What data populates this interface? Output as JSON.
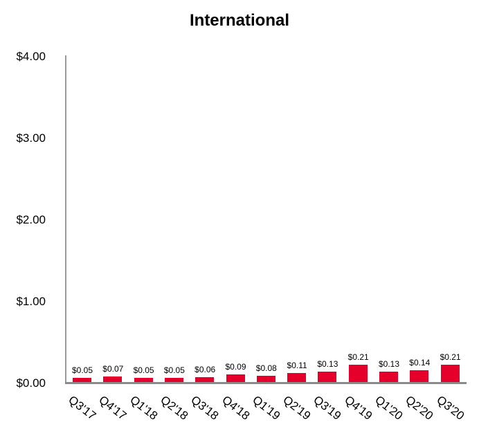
{
  "chart_data": {
    "type": "bar",
    "title": "International",
    "xlabel": "",
    "ylabel": "",
    "ylim": [
      0,
      4
    ],
    "yticks": [
      "$0.00",
      "$1.00",
      "$2.00",
      "$3.00",
      "$4.00"
    ],
    "grid": false,
    "legend": null,
    "bar_color": "#e4002b",
    "categories": [
      "Q3'17",
      "Q4'17",
      "Q1'18",
      "Q2'18",
      "Q3'18",
      "Q4'18",
      "Q1'19",
      "Q2'19",
      "Q3'19",
      "Q4'19",
      "Q1'20",
      "Q2'20",
      "Q3'20"
    ],
    "values": [
      0.05,
      0.07,
      0.05,
      0.05,
      0.06,
      0.09,
      0.08,
      0.11,
      0.13,
      0.21,
      0.13,
      0.14,
      0.21
    ],
    "labels": [
      "$0.05",
      "$0.07",
      "$0.05",
      "$0.05",
      "$0.06",
      "$0.09",
      "$0.08",
      "$0.11",
      "$0.13",
      "$0.21",
      "$0.13",
      "$0.14",
      "$0.21"
    ]
  }
}
